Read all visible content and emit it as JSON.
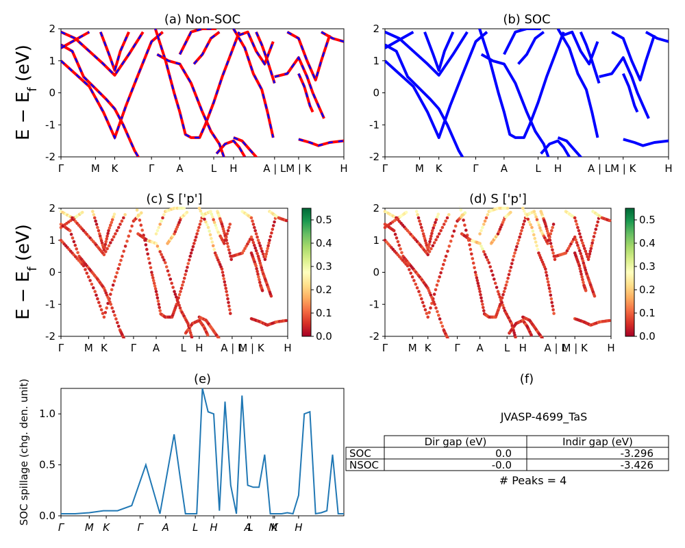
{
  "figure": {
    "ylabel_band": "E − E_f (eV)",
    "ylabel_spillage": "SOC spillage (chg. den. unit)"
  },
  "chart_data": [
    {
      "type": "line",
      "panel": "a",
      "title": "(a) Non-SOC",
      "ylim": [
        -2,
        2
      ],
      "yticks": [
        -2,
        -1,
        0,
        1,
        2
      ],
      "kpath": [
        "Γ",
        "M",
        "K",
        "Γ",
        "A",
        "L",
        "H",
        "A | L",
        "M | K",
        "H"
      ],
      "series": [
        {
          "color": "#ff0000",
          "x": [
            0,
            0.5,
            1,
            1.5,
            2,
            2.5,
            3,
            3.5,
            4,
            4.5,
            5,
            5.5,
            6
          ],
          "y": [
            1.0,
            0.7,
            0.3,
            0.05,
            -0.4,
            -0.9,
            -1.4,
            -1.0,
            -0.3,
            0.3,
            0.8,
            1.1,
            1.3
          ]
        },
        {
          "color": "#ff0000",
          "x": [
            0,
            0.5,
            1,
            1.5,
            2,
            2.5,
            3,
            3.5,
            4
          ],
          "y": [
            1.9,
            1.8,
            1.6,
            1.3,
            1.0,
            0.8,
            0.6,
            1.0,
            1.6
          ]
        },
        {
          "color": "#ff0000",
          "x": [
            3,
            3.5,
            4,
            4.5,
            5,
            5.5,
            6,
            6.5,
            7,
            7.5,
            8,
            8.5,
            9
          ],
          "y": [
            -0.3,
            -0.5,
            -1.0,
            -1.35,
            -1.4,
            -1.4,
            -0.9,
            -0.3,
            0.3,
            0.8,
            1.2,
            1.6,
            1.9
          ]
        },
        {
          "color": "#ff0000",
          "x": [
            5,
            5.5,
            6,
            6.5,
            7,
            7.5,
            8,
            8.5,
            9,
            9.5,
            10
          ],
          "y": [
            0.9,
            0.95,
            0.7,
            0.3,
            0.0,
            -0.4,
            -0.6,
            -0.3,
            0.3,
            0.9,
            1.4
          ]
        },
        {
          "color": "#ff0000",
          "x": [
            9,
            9.5,
            10,
            10.5,
            11,
            11.5,
            12,
            12.5,
            13
          ],
          "y": [
            1.6,
            1.2,
            0.6,
            0.2,
            0.1,
            0.3,
            0.8,
            1.4,
            1.9
          ]
        }
      ]
    },
    {
      "type": "line",
      "panel": "b",
      "title": "(b) SOC",
      "ylim": [
        -2,
        2
      ],
      "yticks": [
        -2,
        -1,
        0,
        1,
        2
      ],
      "kpath": [
        "Γ",
        "M",
        "K",
        "Γ",
        "A",
        "L",
        "H",
        "A | L",
        "M | K",
        "H"
      ],
      "series": [
        {
          "color": "#0000ff",
          "x": [
            0,
            0.5,
            1,
            1.5,
            2,
            2.5,
            3,
            3.5,
            4,
            4.5,
            5,
            5.5,
            6
          ],
          "y": [
            0.85,
            0.6,
            0.25,
            0.0,
            -0.45,
            -0.95,
            -1.5,
            -1.1,
            -0.4,
            0.2,
            0.7,
            1.0,
            1.2
          ]
        },
        {
          "color": "#0000ff",
          "x": [
            0,
            0.5,
            1,
            1.5,
            2,
            2.5,
            3,
            3.5,
            4
          ],
          "y": [
            1.4,
            1.5,
            1.4,
            1.2,
            0.9,
            0.7,
            0.5,
            0.9,
            1.5
          ]
        },
        {
          "color": "#0000ff",
          "x": [
            3,
            3.5,
            4,
            4.5,
            5,
            5.5,
            6,
            6.5,
            7,
            7.5,
            8,
            8.5,
            9
          ],
          "y": [
            -0.2,
            -0.6,
            -1.1,
            -1.4,
            -1.6,
            -1.5,
            -1.0,
            -0.4,
            0.2,
            0.7,
            1.1,
            1.5,
            1.8
          ]
        },
        {
          "color": "#0000ff",
          "x": [
            5,
            5.5,
            6,
            6.5,
            7,
            7.5,
            8,
            8.5,
            9,
            9.5,
            10
          ],
          "y": [
            0.8,
            0.85,
            0.6,
            0.2,
            -0.1,
            -0.5,
            -0.7,
            -0.4,
            0.2,
            0.8,
            1.3
          ]
        },
        {
          "color": "#0000ff",
          "x": [
            9,
            9.5,
            10,
            10.5,
            11,
            11.5,
            12,
            12.5,
            13
          ],
          "y": [
            1.5,
            1.1,
            0.5,
            0.1,
            0.0,
            0.2,
            0.7,
            1.3,
            1.8
          ]
        }
      ]
    },
    {
      "type": "scatter",
      "panel": "c",
      "title": "(c)  S ['p']",
      "ylim": [
        -2,
        2
      ],
      "yticks": [
        -2,
        -1,
        0,
        1,
        2
      ],
      "kpath": [
        "Γ",
        "M",
        "K",
        "Γ",
        "A",
        "L",
        "H",
        "A | L",
        "M | K",
        "H"
      ],
      "colorbar": {
        "ticks": [
          "0.0",
          "0.1",
          "0.2",
          "0.3",
          "0.4",
          "0.5"
        ],
        "range": [
          0,
          0.55
        ],
        "colormap": "RdYlGn"
      },
      "points_hint": "dense scatter following band lines, colored by p-weight"
    },
    {
      "type": "scatter",
      "panel": "d",
      "title": "(d) S ['p']",
      "ylim": [
        -2,
        2
      ],
      "yticks": [
        -2,
        -1,
        0,
        1,
        2
      ],
      "kpath": [
        "Γ",
        "M",
        "K",
        "Γ",
        "A",
        "L",
        "H",
        "A | L",
        "M | K",
        "H"
      ],
      "colorbar": {
        "ticks": [
          "0.0",
          "0.1",
          "0.2",
          "0.3",
          "0.4",
          "0.5"
        ],
        "range": [
          0,
          0.55
        ],
        "colormap": "RdYlGn"
      }
    },
    {
      "type": "line",
      "panel": "e",
      "title": "(e)",
      "ylabel": "SOC spillage (chg. den. unit)",
      "ylim": [
        0,
        1.25
      ],
      "yticks": [
        "0.0",
        "0.5",
        "1.0"
      ],
      "xticks": [
        "Γ",
        "M",
        "K",
        "Γ",
        "A",
        "L",
        "H",
        "A",
        "L",
        "M",
        "K",
        "H"
      ],
      "series": [
        {
          "color": "#1f77b4",
          "x": [
            0,
            5,
            10,
            15,
            20,
            25,
            30,
            35,
            40,
            42,
            44,
            46,
            48,
            50,
            52,
            54,
            56,
            58,
            60,
            62,
            64,
            66,
            68,
            70,
            72,
            74,
            76,
            78,
            80,
            82,
            84,
            86,
            88,
            90,
            92,
            94,
            96,
            98,
            100
          ],
          "y": [
            0.02,
            0.02,
            0.03,
            0.05,
            0.05,
            0.1,
            0.5,
            0.02,
            0.8,
            0.4,
            0.02,
            0.02,
            0.02,
            1.25,
            1.02,
            1.0,
            0.05,
            1.12,
            0.3,
            0.02,
            1.18,
            0.3,
            0.28,
            0.28,
            0.6,
            0.02,
            0.02,
            0.02,
            0.03,
            0.02,
            0.2,
            1.0,
            1.02,
            0.02,
            0.03,
            0.05,
            0.6,
            0.02,
            0.02
          ]
        }
      ]
    },
    {
      "type": "table",
      "panel": "f",
      "title": "(f)",
      "caption": "JVASP-4699_TaS",
      "columns": [
        "",
        "Dir gap (eV)",
        "Indir gap (eV)"
      ],
      "rows": [
        [
          "SOC",
          "0.0",
          "-3.296"
        ],
        [
          "NSOC",
          "-0.0",
          "-3.426"
        ]
      ],
      "footer": "# Peaks = 4"
    }
  ]
}
